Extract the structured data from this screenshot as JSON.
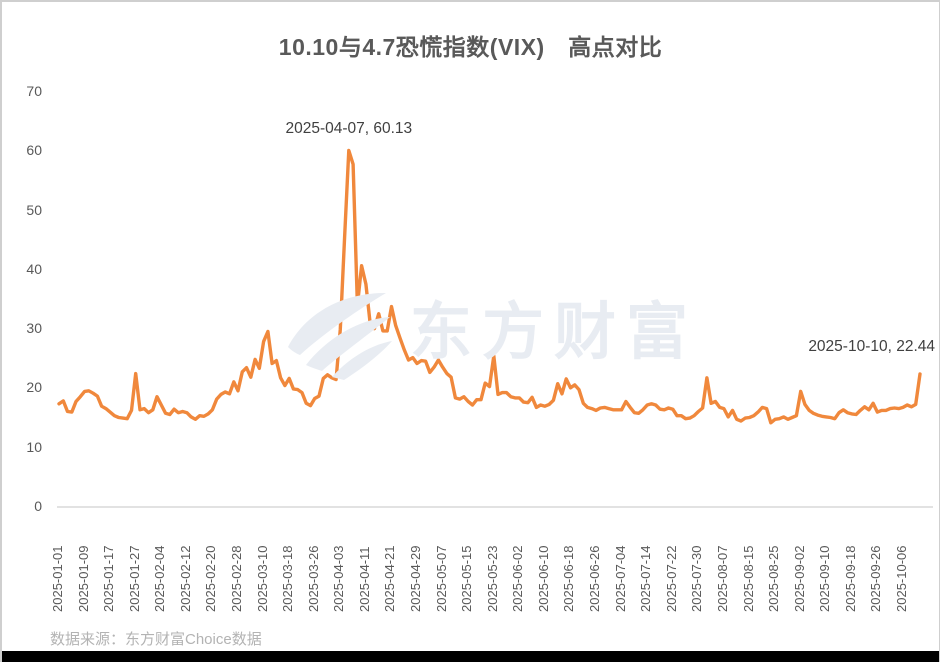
{
  "source_note": "数据来源：东方财富Choice数据",
  "chart_data": {
    "type": "line",
    "title": "10.10与4.7恐慌指数(VIX)　高点对比",
    "series_name": "VIX",
    "line_color": "#F0883C",
    "grid": false,
    "legend": false,
    "ylim": [
      0,
      70
    ],
    "y_ticks": [
      0,
      10,
      20,
      30,
      40,
      50,
      60,
      70
    ],
    "x_ticks_every_n_points": 6,
    "x_tick_labels": [
      "2025-01-01",
      "2025-01-09",
      "2025-01-17",
      "2025-01-27",
      "2025-02-04",
      "2025-02-12",
      "2025-02-20",
      "2025-02-28",
      "2025-03-10",
      "2025-03-18",
      "2025-03-26",
      "2025-04-03",
      "2025-04-11",
      "2025-04-21",
      "2025-04-29",
      "2025-05-07",
      "2025-05-15",
      "2025-05-23",
      "2025-06-02",
      "2025-06-10",
      "2025-06-18",
      "2025-06-26",
      "2025-07-04",
      "2025-07-14",
      "2025-07-22",
      "2025-07-30",
      "2025-08-07",
      "2025-08-15",
      "2025-08-25",
      "2025-09-02",
      "2025-09-10",
      "2025-09-18",
      "2025-09-26",
      "2025-10-06"
    ],
    "values": [
      17.4,
      17.9,
      16.1,
      16.0,
      17.8,
      18.6,
      19.5,
      19.6,
      19.2,
      18.7,
      17.0,
      16.6,
      16.0,
      15.4,
      15.1,
      15.0,
      14.9,
      16.3,
      22.5,
      16.4,
      16.6,
      15.9,
      16.4,
      18.6,
      17.2,
      15.8,
      15.6,
      16.5,
      15.9,
      16.1,
      15.9,
      15.2,
      14.8,
      15.4,
      15.3,
      15.7,
      16.4,
      18.2,
      19.0,
      19.4,
      19.1,
      21.1,
      19.6,
      22.8,
      23.5,
      21.9,
      24.9,
      23.4,
      27.9,
      29.6,
      24.2,
      24.7,
      21.8,
      20.5,
      21.7,
      19.9,
      19.8,
      19.3,
      17.5,
      17.1,
      18.3,
      18.7,
      21.7,
      22.3,
      21.8,
      21.5,
      30.0,
      45.5,
      60.13,
      57.8,
      34.0,
      40.7,
      37.6,
      30.9,
      30.1,
      32.6,
      29.7,
      29.7,
      33.8,
      30.6,
      28.5,
      26.5,
      24.8,
      25.2,
      24.2,
      24.7,
      24.6,
      22.7,
      23.6,
      24.8,
      23.6,
      22.5,
      21.9,
      18.4,
      18.2,
      18.6,
      17.8,
      17.2,
      18.1,
      18.1,
      20.9,
      20.3,
      25.5,
      19.0,
      19.3,
      19.3,
      18.6,
      18.4,
      18.4,
      17.7,
      17.6,
      18.5,
      16.8,
      17.2,
      17.0,
      17.3,
      18.0,
      20.8,
      19.1,
      21.6,
      20.1,
      20.6,
      19.8,
      17.5,
      16.8,
      16.6,
      16.3,
      16.7,
      16.8,
      16.6,
      16.4,
      16.4,
      16.4,
      17.8,
      16.8,
      15.9,
      15.8,
      16.4,
      17.2,
      17.4,
      17.2,
      16.5,
      16.4,
      16.7,
      16.5,
      15.4,
      15.4,
      14.9,
      15.0,
      15.4,
      16.1,
      16.7,
      21.8,
      17.5,
      17.8,
      16.8,
      16.6,
      15.2,
      16.3,
      14.8,
      14.5,
      15.0,
      15.1,
      15.4,
      16.0,
      16.8,
      16.6,
      14.2,
      14.8,
      14.9,
      15.2,
      14.8,
      15.1,
      15.4,
      19.5,
      17.3,
      16.3,
      15.8,
      15.5,
      15.3,
      15.2,
      15.1,
      14.9,
      15.9,
      16.4,
      15.9,
      15.7,
      15.6,
      16.3,
      16.9,
      16.4,
      17.5,
      16.0,
      16.3,
      16.3,
      16.6,
      16.7,
      16.6,
      16.8,
      17.2,
      16.9,
      17.3,
      22.44
    ],
    "annotations": [
      {
        "text": "2025-04-07, 60.13",
        "point_index": 68,
        "value": 60.13,
        "align": "center"
      },
      {
        "text": "2025-10-10, 22.44",
        "point_index": 202,
        "value": 22.44,
        "align": "right"
      }
    ],
    "watermark_text": "东方财富"
  }
}
